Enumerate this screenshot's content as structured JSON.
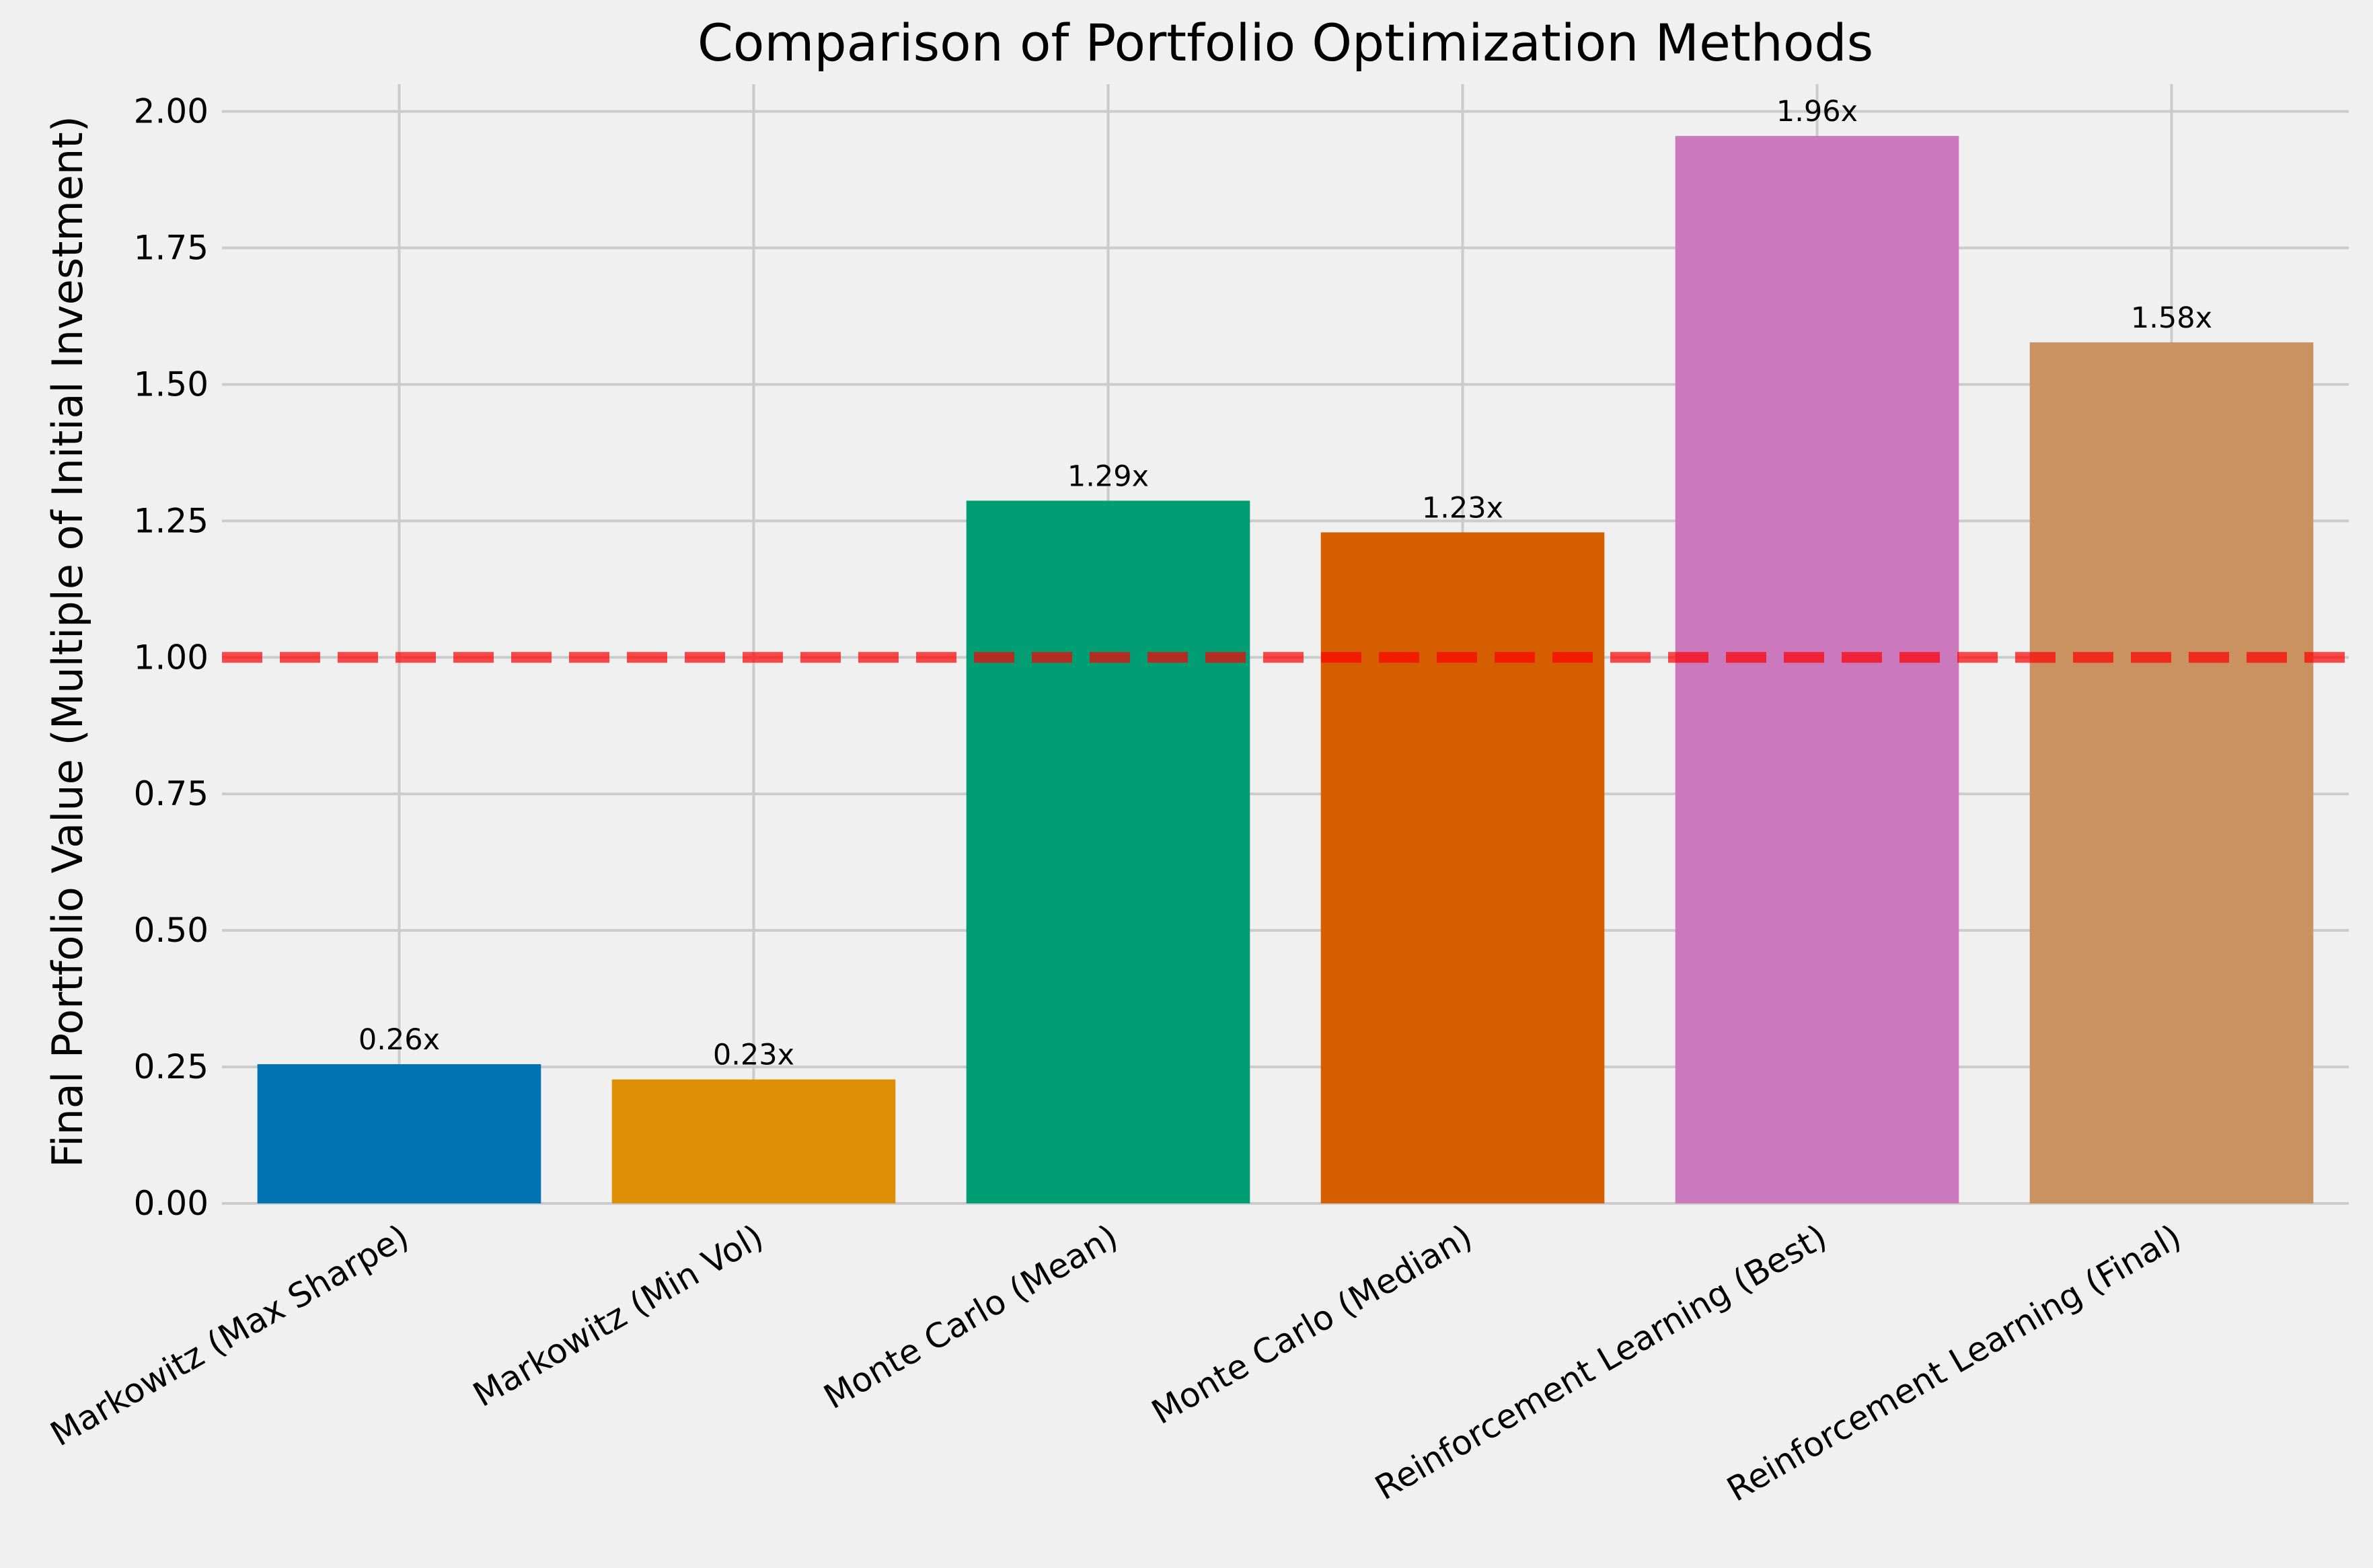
{
  "chart_data": {
    "type": "bar",
    "title": "Comparison of Portfolio Optimization Methods",
    "xlabel": "",
    "ylabel": "Final Portfolio Value (Multiple of Initial Investment)",
    "categories": [
      "Markowitz (Max Sharpe)",
      "Markowitz (Min Vol)",
      "Monte Carlo (Mean)",
      "Monte Carlo (Median)",
      "Reinforcement Learning (Best)",
      "Reinforcement Learning (Final)"
    ],
    "values": [
      0.255,
      0.227,
      1.287,
      1.229,
      1.955,
      1.577
    ],
    "data_labels": [
      "0.26x",
      "0.23x",
      "1.29x",
      "1.23x",
      "1.96x",
      "1.58x"
    ],
    "colors": [
      "#0173b2",
      "#de8f05",
      "#029e73",
      "#d55e00",
      "#cc78bc",
      "#ca9161"
    ],
    "ylim": [
      0,
      2.05
    ],
    "yticks": [
      0.0,
      0.25,
      0.5,
      0.75,
      1.0,
      1.25,
      1.5,
      1.75,
      2.0
    ],
    "ytick_labels": [
      "0.00",
      "0.25",
      "0.50",
      "0.75",
      "1.00",
      "1.25",
      "1.50",
      "1.75",
      "2.00"
    ],
    "reference_line": {
      "value": 1.0,
      "style": "dashed",
      "color": "#ff0000"
    },
    "grid": true,
    "legend": "none",
    "background": "#f0f0f0"
  }
}
